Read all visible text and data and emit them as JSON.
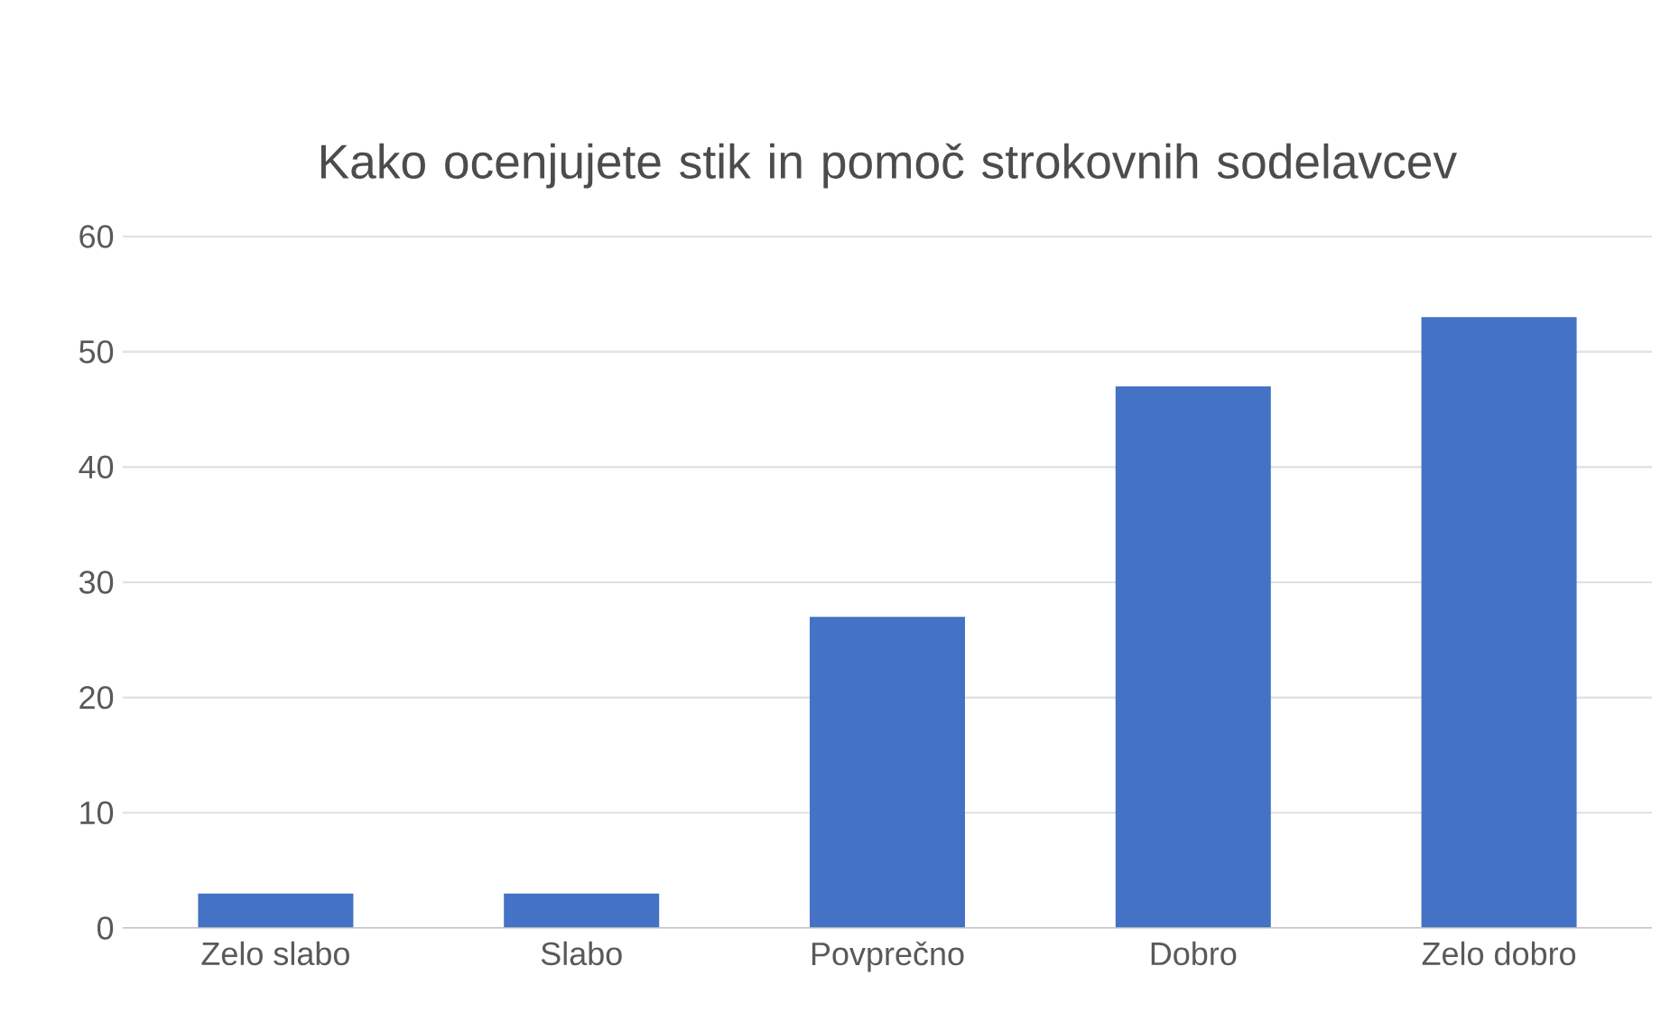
{
  "chart_data": {
    "type": "bar",
    "title": "Kako ocenjujete stik in pomoč strokovnih sodelavcev",
    "categories": [
      "Zelo slabo",
      "Slabo",
      "Povprečno",
      "Dobro",
      "Zelo dobro"
    ],
    "values": [
      3,
      3,
      27,
      47,
      53
    ],
    "color": "#4472c4",
    "ylim": [
      0,
      60
    ],
    "yticks": [
      0,
      10,
      20,
      30,
      40,
      50,
      60
    ],
    "grid": "y"
  }
}
